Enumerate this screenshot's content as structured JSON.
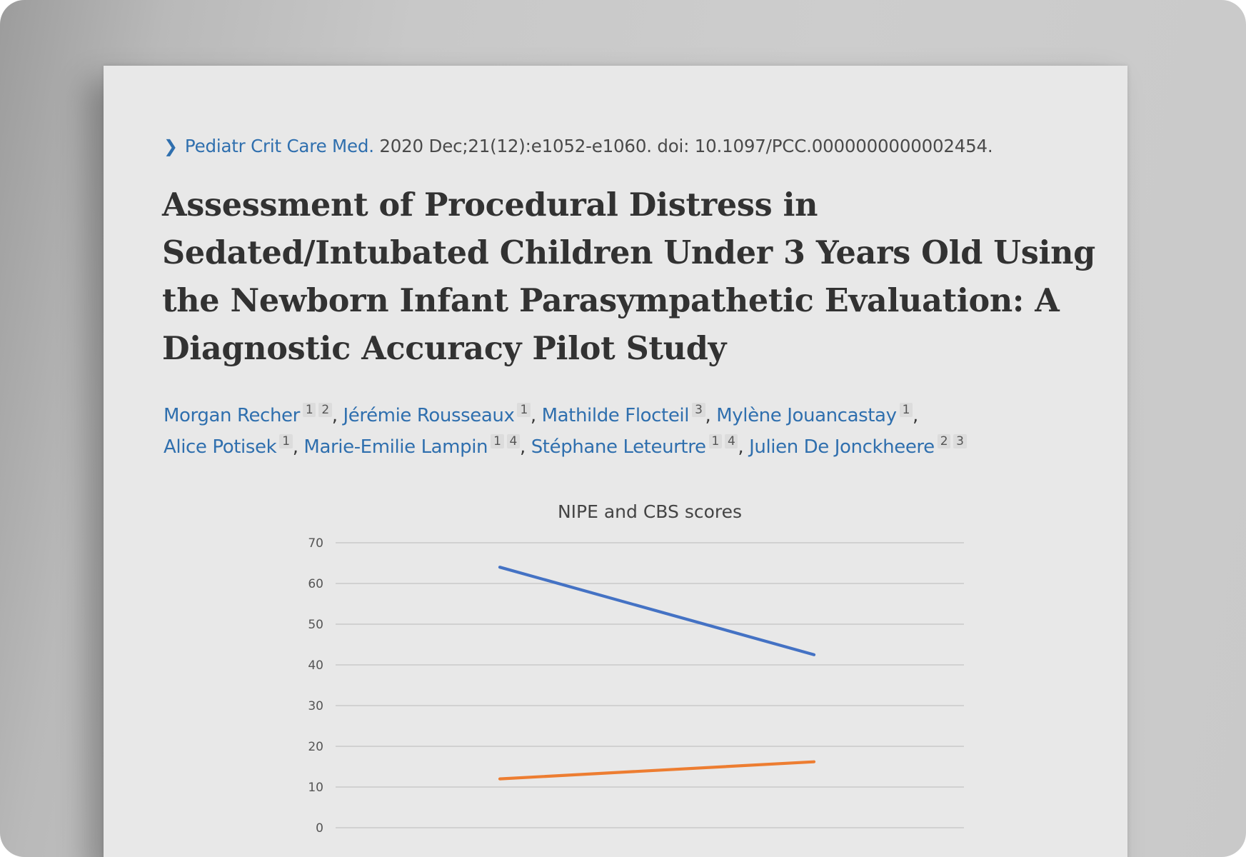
{
  "citation": {
    "journal": "Pediatr Crit Care Med.",
    "details": "2020 Dec;21(12):e1052-e1060. doi: 10.1097/PCC.0000000000002454."
  },
  "title": "Assessment of Procedural Distress in Sedated/Intubated Children Under 3 Years Old Using the Newborn Infant Parasympathetic Evaluation: A Diagnostic Accuracy Pilot Study",
  "authors": [
    {
      "name": "Morgan Recher",
      "affs": [
        "1",
        "2"
      ]
    },
    {
      "name": "Jérémie Rousseaux",
      "affs": [
        "1"
      ]
    },
    {
      "name": "Mathilde Flocteil",
      "affs": [
        "3"
      ]
    },
    {
      "name": "Mylène Jouancastay",
      "affs": [
        "1"
      ]
    },
    {
      "name": "Alice Potisek",
      "affs": [
        "1"
      ]
    },
    {
      "name": "Marie-Emilie Lampin",
      "affs": [
        "1",
        "4"
      ]
    },
    {
      "name": "Stéphane Leteurtre",
      "affs": [
        "1",
        "4"
      ]
    },
    {
      "name": "Julien De Jonckheere",
      "affs": [
        "2",
        "3"
      ]
    }
  ],
  "chart_data": {
    "type": "line",
    "title": "NIPE and CBS scores",
    "xlabel": "",
    "ylabel": "",
    "ylim": [
      0,
      70
    ],
    "yticks": [
      0,
      10,
      20,
      30,
      40,
      50,
      60,
      70
    ],
    "grid": true,
    "series": [
      {
        "color": "#4472c4",
        "values": [
          64,
          42.5
        ]
      },
      {
        "color": "#ed7d31",
        "values": [
          12,
          16.2
        ]
      }
    ]
  }
}
